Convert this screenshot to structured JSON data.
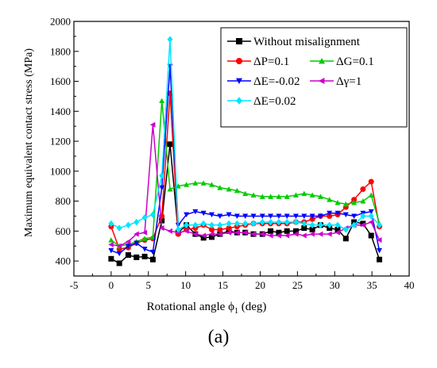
{
  "panel_label": "(a)",
  "chart_data": {
    "type": "line",
    "xlabel": "Rotational angle  ϕ",
    "xlabel_sub": "1",
    "xlabel_unit": " (deg)",
    "ylabel": "Maximum equivalent contact stress (MPa)",
    "xlim": [
      -5,
      40
    ],
    "ylim": [
      300,
      2000
    ],
    "xticks": [
      -5,
      0,
      5,
      10,
      15,
      20,
      25,
      30,
      35,
      40
    ],
    "yticks": [
      400,
      600,
      800,
      1000,
      1200,
      1400,
      1600,
      1800,
      2000
    ],
    "grid": false,
    "legend_position": "top-right",
    "x": [
      0,
      1.1,
      2.3,
      3.4,
      4.5,
      5.6,
      6.8,
      7.9,
      9.0,
      10.1,
      11.3,
      12.4,
      13.5,
      14.6,
      15.8,
      16.9,
      18.0,
      19.1,
      20.3,
      21.4,
      22.5,
      23.6,
      24.8,
      25.9,
      27.0,
      28.1,
      29.3,
      30.4,
      31.5,
      32.6,
      33.8,
      34.9,
      36.0
    ],
    "series": [
      {
        "name": "Without misalignment",
        "color": "#000000",
        "marker": "square",
        "y": [
          415,
          385,
          440,
          425,
          430,
          410,
          670,
          1180,
          590,
          640,
          580,
          555,
          560,
          580,
          600,
          590,
          590,
          580,
          580,
          600,
          590,
          600,
          600,
          620,
          610,
          640,
          620,
          610,
          550,
          660,
          650,
          570,
          410
        ]
      },
      {
        "name": "ΔP=0.1",
        "color": "#ff0000",
        "marker": "circle",
        "y": [
          630,
          480,
          490,
          520,
          540,
          550,
          700,
          1520,
          580,
          610,
          620,
          640,
          610,
          610,
          620,
          630,
          640,
          650,
          650,
          650,
          650,
          650,
          660,
          660,
          680,
          700,
          700,
          710,
          760,
          810,
          880,
          930,
          630
        ]
      },
      {
        "name": "ΔG=0.1",
        "color": "#00cc00",
        "marker": "triangle-up",
        "y": [
          540,
          500,
          510,
          530,
          550,
          560,
          1470,
          880,
          900,
          910,
          920,
          920,
          910,
          890,
          880,
          870,
          850,
          840,
          830,
          830,
          830,
          830,
          840,
          850,
          840,
          830,
          810,
          790,
          780,
          790,
          800,
          840,
          650
        ]
      },
      {
        "name": "ΔE=-0.02",
        "color": "#0000ff",
        "marker": "triangle-down",
        "y": [
          470,
          450,
          500,
          520,
          480,
          460,
          890,
          1700,
          640,
          710,
          730,
          720,
          710,
          700,
          710,
          700,
          700,
          700,
          700,
          700,
          700,
          700,
          700,
          700,
          700,
          700,
          720,
          720,
          710,
          700,
          720,
          730,
          470
        ]
      },
      {
        "name": "Δγ=1",
        "color": "#cc00cc",
        "marker": "triangle-left",
        "y": [
          510,
          500,
          530,
          580,
          590,
          1310,
          620,
          600,
          590,
          600,
          580,
          570,
          580,
          580,
          590,
          590,
          590,
          580,
          580,
          570,
          570,
          570,
          580,
          570,
          580,
          580,
          580,
          590,
          620,
          640,
          640,
          660,
          540
        ]
      },
      {
        "name": "ΔE=0.02",
        "color": "#00e5ff",
        "marker": "diamond",
        "y": [
          650,
          620,
          640,
          660,
          690,
          710,
          970,
          1880,
          610,
          640,
          640,
          650,
          640,
          640,
          650,
          650,
          650,
          650,
          660,
          660,
          660,
          660,
          660,
          650,
          640,
          640,
          640,
          640,
          610,
          640,
          700,
          700,
          640
        ]
      }
    ]
  }
}
